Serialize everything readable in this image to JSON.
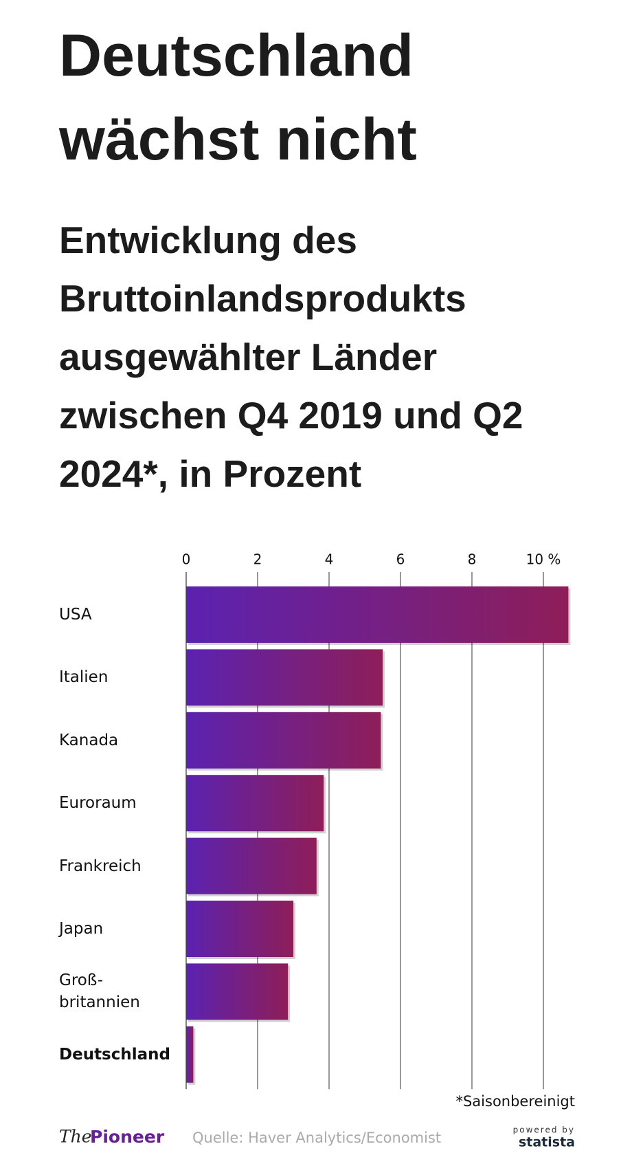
{
  "chart_data": {
    "type": "hbar",
    "title": "Deutschland wächst nicht",
    "subtitle": "Entwicklung des Bruttoinlandsprodukts ausgewählter Länder zwischen Q4 2019 und Q2 2024*, in Prozent",
    "categories": [
      "USA",
      "Italien",
      "Kanada",
      "Euroraum",
      "Frankreich",
      "Japan",
      "Groß-\nbritannien",
      "Deutschland"
    ],
    "values": [
      10.7,
      5.5,
      5.45,
      3.85,
      3.65,
      3.0,
      2.85,
      0.2
    ],
    "colors": [
      "#5b22b0",
      "#8e1e58"
    ],
    "highlight": "Deutschland",
    "xlim": [
      0,
      11
    ],
    "xticks": [
      0,
      2,
      4,
      6,
      8,
      {
        "value": 10,
        "label": "10 %"
      }
    ],
    "grid": true,
    "note": "*Saisonbereinigt",
    "source": "Quelle: Haver Analytics/Economist",
    "logo": {
      "the": "The",
      "name": "Pioneer"
    },
    "powered": {
      "by": "powered by",
      "brand": "statista"
    }
  }
}
